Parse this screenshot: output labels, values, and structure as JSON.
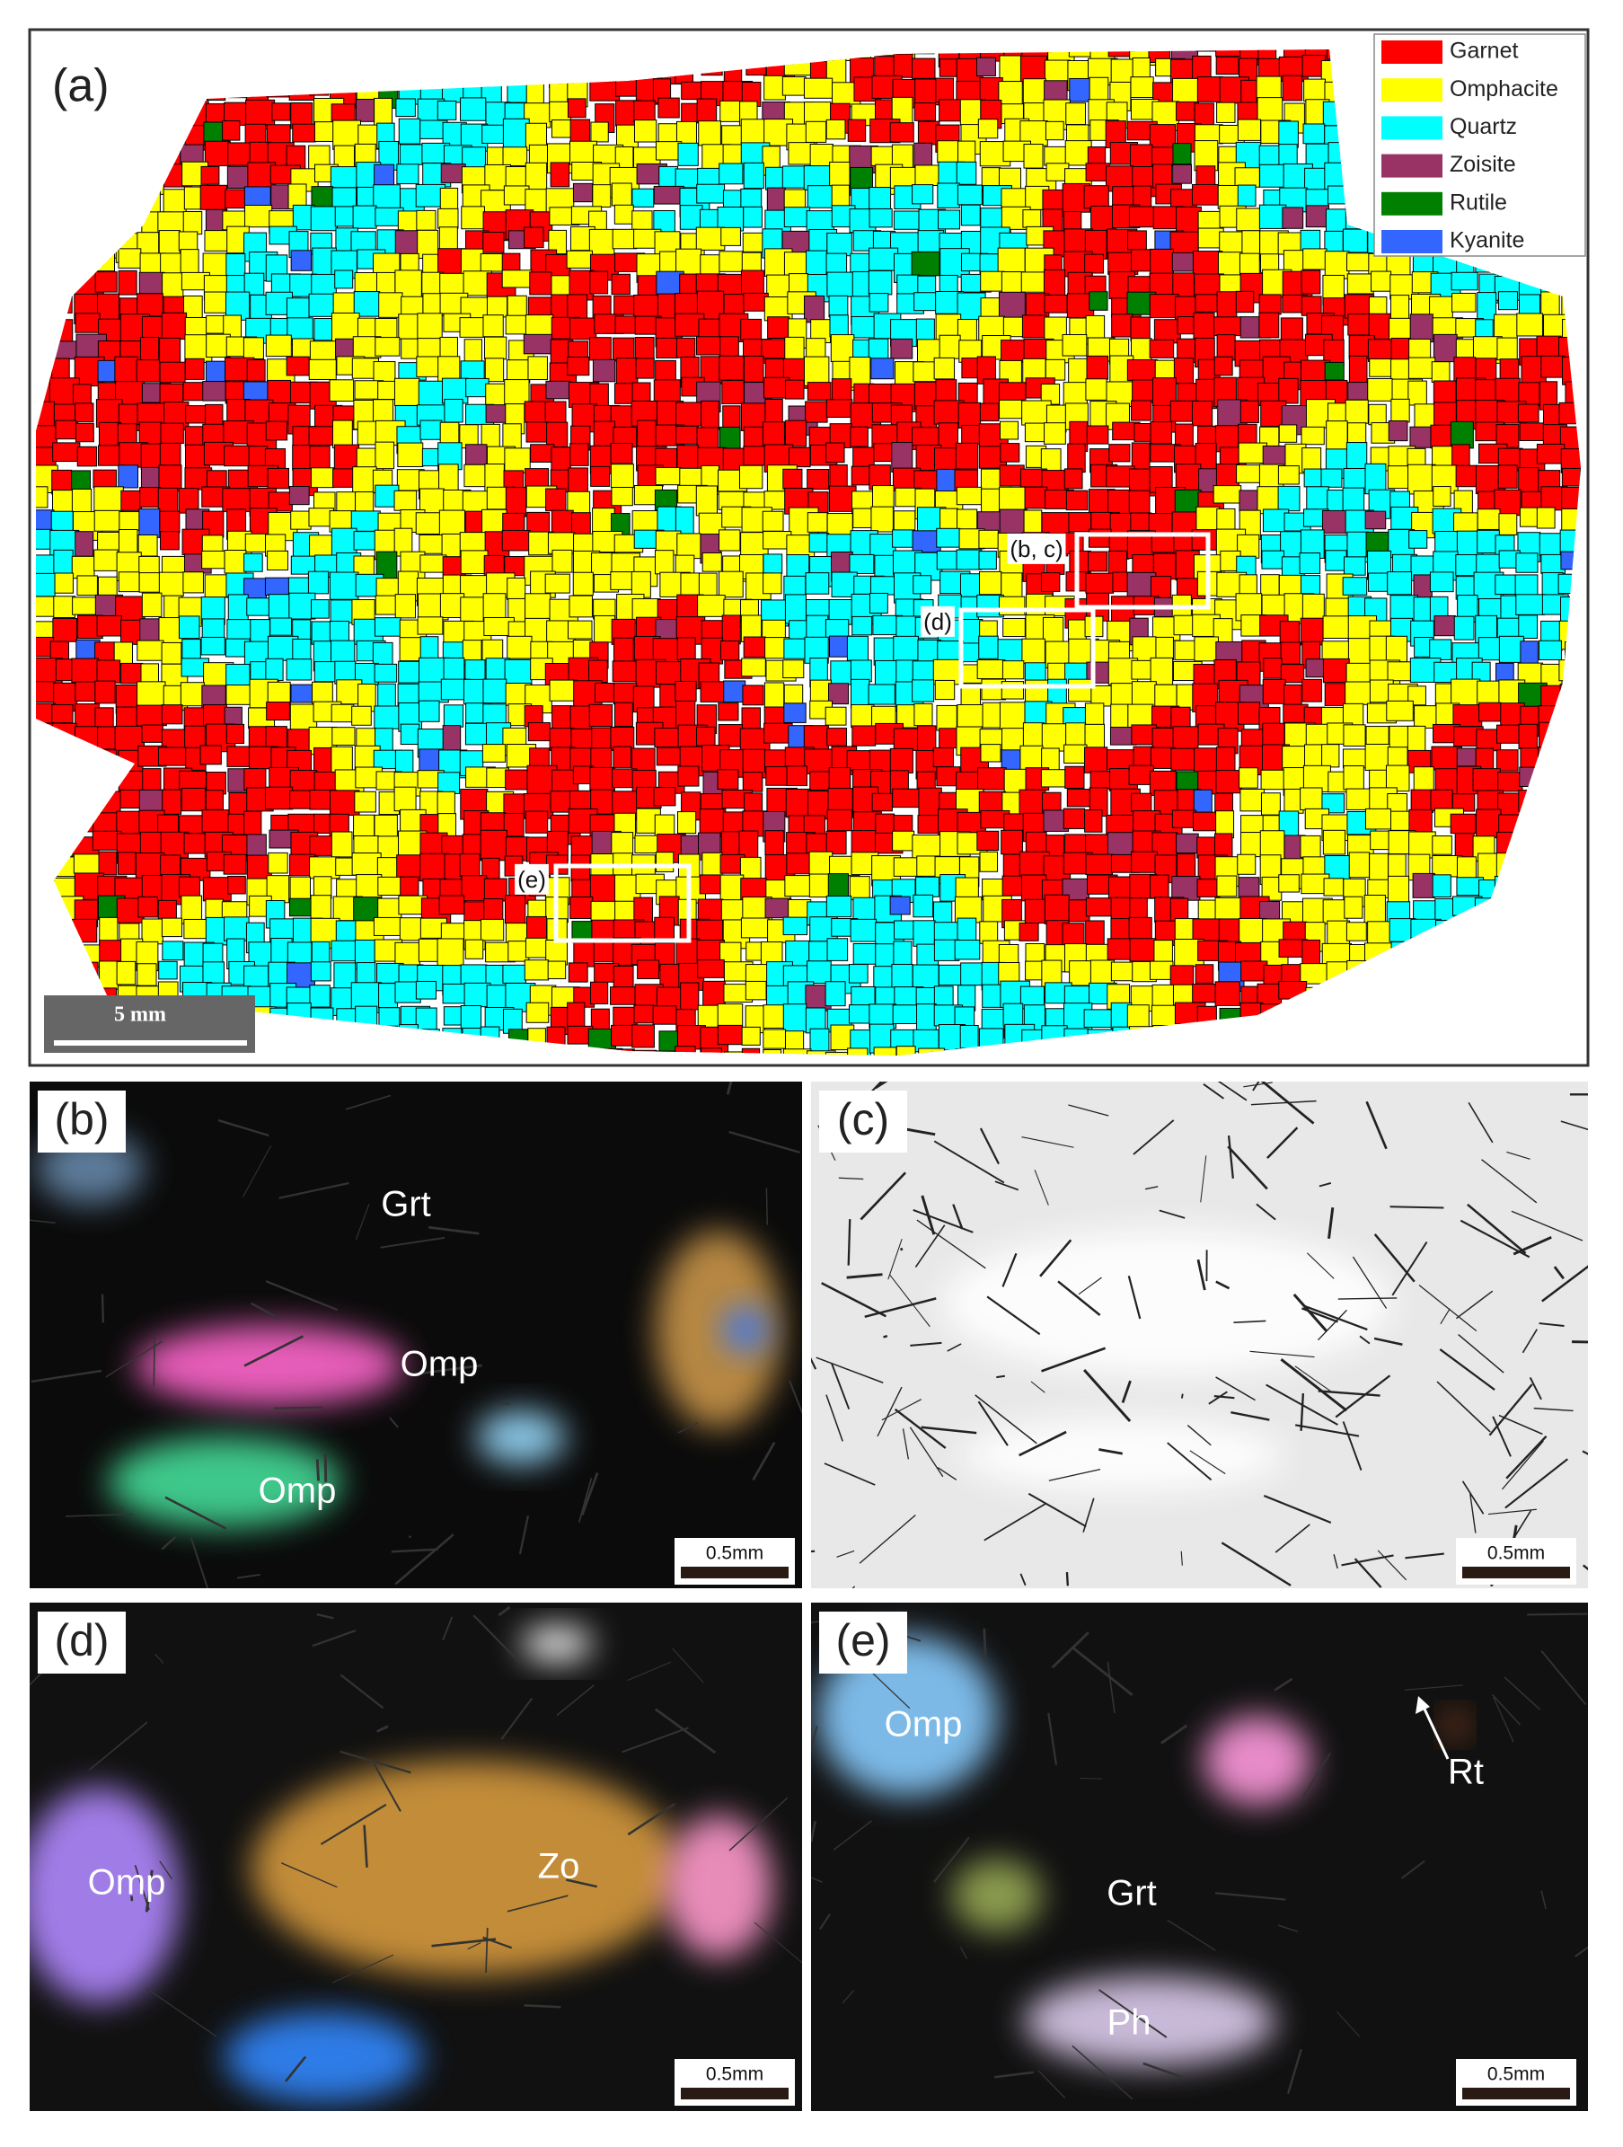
{
  "panels": [
    {
      "label": "(a)",
      "legend": [
        {
          "name": "Garnet",
          "color": "#ff0000"
        },
        {
          "name": "Omphacite",
          "color": "#ffff00"
        },
        {
          "name": "Quartz",
          "color": "#00ffff"
        },
        {
          "name": "Zoisite",
          "color": "#993366"
        },
        {
          "name": "Rutile",
          "color": "#008000"
        },
        {
          "name": "Kyanite",
          "color": "#3366ff"
        }
      ],
      "scale_bar": "5 mm",
      "boxes": [
        "(b, c)",
        "(d)",
        "(e)"
      ]
    },
    {
      "label": "(b)",
      "annotations": [
        "Grt",
        "Omp",
        "Omp"
      ],
      "scale_bar": "0.5mm"
    },
    {
      "label": "(c)",
      "annotations": [],
      "scale_bar": "0.5mm"
    },
    {
      "label": "(d)",
      "annotations": [
        "Omp",
        "Zo"
      ],
      "scale_bar": "0.5mm"
    },
    {
      "label": "(e)",
      "annotations": [
        "Omp",
        "Rt",
        "Grt",
        "Ph"
      ],
      "scale_bar": "0.5mm"
    }
  ]
}
